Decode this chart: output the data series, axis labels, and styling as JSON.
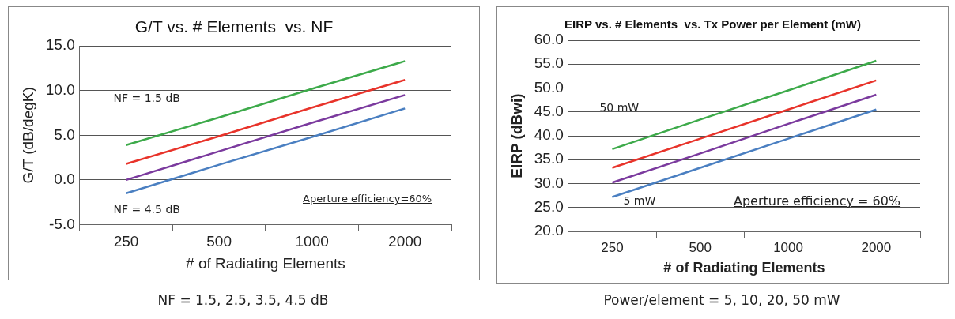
{
  "chart_data": [
    {
      "type": "line",
      "title": "G/T vs. # Elements  vs. NF",
      "xlabel": "# of Radiating Elements",
      "ylabel": "G/T (dB/degK)",
      "categories": [
        "250",
        "500",
        "1000",
        "2000"
      ],
      "series": [
        {
          "color": "#3daa4a",
          "values": [
            3.9,
            7.0,
            10.2,
            13.3
          ]
        },
        {
          "color": "#e8332a",
          "values": [
            1.8,
            4.9,
            8.1,
            11.2
          ]
        },
        {
          "color": "#7b3a9e",
          "values": [
            0.0,
            3.2,
            6.4,
            9.5
          ]
        },
        {
          "color": "#4a7fc1",
          "values": [
            -1.5,
            1.7,
            4.8,
            8.0
          ]
        }
      ],
      "ylim": [
        -5,
        15
      ],
      "yticks": [
        {
          "value": -5,
          "label": "-5.0"
        },
        {
          "value": 0,
          "label": "0.0"
        },
        {
          "value": 5,
          "label": "5.0"
        },
        {
          "value": 10,
          "label": "10.0"
        },
        {
          "value": 15,
          "label": "15.0"
        }
      ],
      "grid": "y",
      "legend": false,
      "marker": "none",
      "line_style": "solid",
      "annotations": [
        "NF = 1.5 dB",
        "NF = 4.5 dB",
        "Aperture  efficiency=60%",
        "NF = 1.5, 2.5, 3.5, 4.5 dB"
      ]
    },
    {
      "type": "line",
      "title": "EIRP vs. # Elements  vs. Tx Power per Element (mW)",
      "xlabel": "# of Radiating Elements",
      "ylabel": "EIRP (dBwi)",
      "categories": [
        "250",
        "500",
        "1000",
        "2000"
      ],
      "series": [
        {
          "color": "#3daa4a",
          "values": [
            37.2,
            43.4,
            49.5,
            55.7
          ]
        },
        {
          "color": "#e8332a",
          "values": [
            33.3,
            39.4,
            45.5,
            51.6
          ]
        },
        {
          "color": "#7b3a9e",
          "values": [
            30.2,
            36.3,
            42.5,
            48.6
          ]
        },
        {
          "color": "#4a7fc1",
          "values": [
            27.2,
            33.3,
            39.4,
            45.5
          ]
        }
      ],
      "ylim": [
        20,
        60
      ],
      "yticks": [
        {
          "value": 20,
          "label": "20.0"
        },
        {
          "value": 25,
          "label": "25.0"
        },
        {
          "value": 30,
          "label": "30.0"
        },
        {
          "value": 35,
          "label": "35.0"
        },
        {
          "value": 40,
          "label": "40.0"
        },
        {
          "value": 45,
          "label": "45.0"
        },
        {
          "value": 50,
          "label": "50.0"
        },
        {
          "value": 55,
          "label": "55.0"
        },
        {
          "value": 60,
          "label": "60.0"
        }
      ],
      "grid": "y",
      "legend": false,
      "marker": "none",
      "line_style": "solid",
      "annotations": [
        "50 mW",
        "5 mW",
        "Aperture efficiency = 60%",
        "Power/element = 5, 10, 20, 50 mW"
      ]
    }
  ]
}
